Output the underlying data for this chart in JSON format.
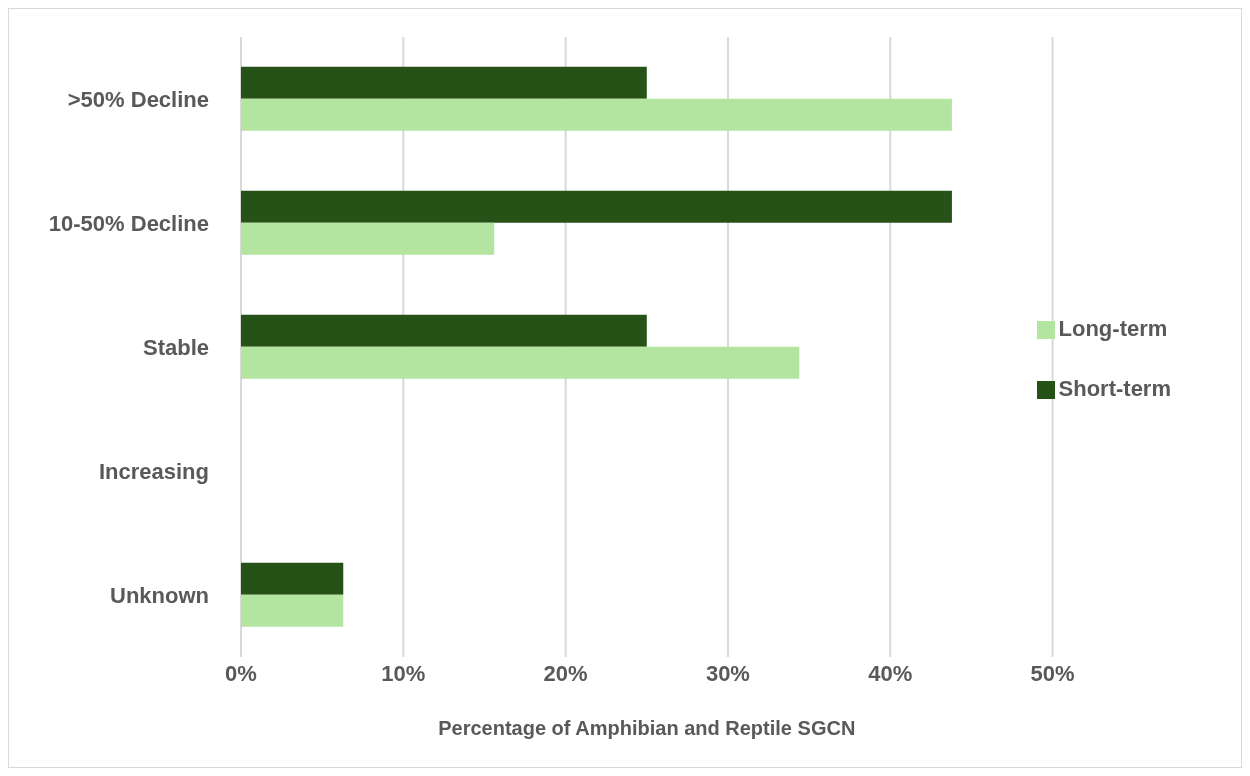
{
  "chart_data": {
    "type": "bar",
    "orientation": "horizontal",
    "xlabel": "Percentage of Amphibian and Reptile SGCN",
    "categories": [
      ">50% Decline",
      "10-50% Decline",
      "Stable",
      "Increasing",
      "Unknown"
    ],
    "series": [
      {
        "name": "Short-term",
        "color": "#265117",
        "values": [
          25,
          43.8,
          25,
          0,
          6.3
        ]
      },
      {
        "name": "Long-term",
        "color": "#b3e5a1",
        "values": [
          43.8,
          15.6,
          34.4,
          0,
          6.3
        ]
      }
    ],
    "xlim": [
      0,
      50
    ],
    "xticks": [
      {
        "value": 0,
        "label": "0%"
      },
      {
        "value": 10,
        "label": "10%"
      },
      {
        "value": 20,
        "label": "20%"
      },
      {
        "value": 30,
        "label": "30%"
      },
      {
        "value": 40,
        "label": "40%"
      },
      {
        "value": 50,
        "label": "50%"
      }
    ],
    "grid": "x",
    "legend": "right"
  }
}
